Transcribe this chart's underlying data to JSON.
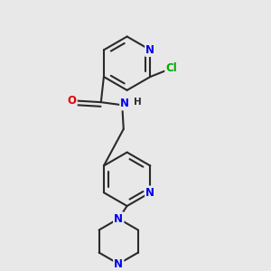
{
  "background_color": "#e8e8e8",
  "bond_color": "#2a2a2a",
  "bond_width": 1.5,
  "atom_colors": {
    "N": "#0000ee",
    "O": "#dd0000",
    "Cl": "#00aa00",
    "C": "#2a2a2a"
  },
  "font_size": 8.5,
  "fig_size": [
    3.0,
    3.0
  ],
  "dpi": 100
}
